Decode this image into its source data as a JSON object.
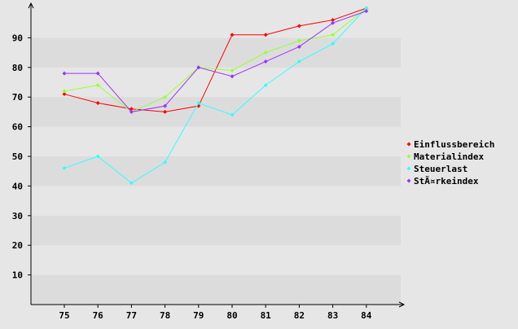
{
  "chart_data": {
    "type": "line",
    "title": "",
    "xlabel": "",
    "ylabel": "",
    "categories": [
      "75",
      "76",
      "77",
      "78",
      "79",
      "80",
      "81",
      "82",
      "83",
      "84"
    ],
    "ylim": [
      0,
      100
    ],
    "yticks": [
      10,
      20,
      30,
      40,
      50,
      60,
      70,
      80,
      90
    ],
    "grid": "alternating horizontal bands",
    "legend_position": "right",
    "series": [
      {
        "name": "Einflussbereich",
        "color": "#ff0000",
        "values": [
          71,
          68,
          66,
          65,
          67,
          91,
          91,
          94,
          96,
          100
        ]
      },
      {
        "name": "Materialindex",
        "color": "#99ff33",
        "values": [
          72,
          74,
          65,
          70,
          80,
          79,
          85,
          89,
          91,
          100
        ]
      },
      {
        "name": "Steuerlast",
        "color": "#33ffff",
        "values": [
          46,
          50,
          41,
          48,
          68,
          64,
          74,
          82,
          88,
          100
        ]
      },
      {
        "name": "StÃ¤rkeindex",
        "color": "#9933ff",
        "values": [
          78,
          78,
          65,
          67,
          80,
          77,
          82,
          87,
          95,
          99
        ]
      }
    ]
  }
}
